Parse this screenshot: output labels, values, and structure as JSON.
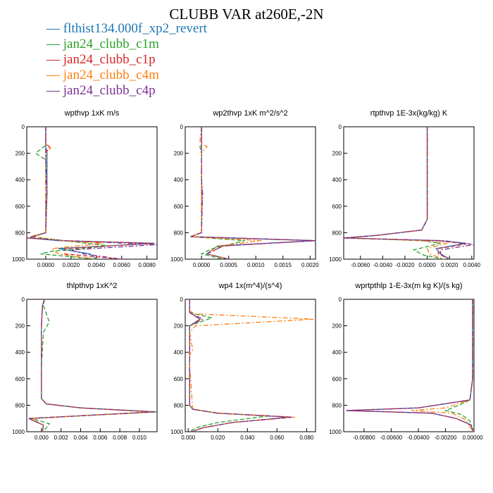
{
  "title": "CLUBB VAR at260E,-2N",
  "legend": [
    {
      "label": "flthist134.000f_xp2_revert",
      "color": "#1f77b4",
      "dash": "solid"
    },
    {
      "label": "jan24_clubb_c1m",
      "color": "#2ca02c",
      "dash": "dash"
    },
    {
      "label": "jan24_clubb_c1p",
      "color": "#d62728",
      "dash": "dash"
    },
    {
      "label": "jan24_clubb_c4m",
      "color": "#ff7f0e",
      "dash": "dashdot"
    },
    {
      "label": "jan24_clubb_c4p",
      "color": "#7b3294",
      "dash": "dashdot"
    }
  ],
  "chart_data": [
    {
      "type": "line",
      "title": "wpthvp   1xK m/s",
      "xlim": [
        -0.0015,
        0.0088
      ],
      "ylim": [
        0,
        1000
      ],
      "y_inverted": true,
      "xticks": [
        0.0,
        0.002,
        0.004,
        0.006,
        0.008
      ],
      "xticklabels": [
        "0.0000",
        "0.0020",
        "0.0040",
        "0.0060",
        "0.0080"
      ],
      "yticks": [
        0,
        200,
        400,
        600,
        800,
        1000
      ],
      "yticklabels": [
        "0",
        "200",
        "400",
        "600",
        "800",
        "1000"
      ],
      "series": [
        {
          "name": "flthist134.000f_xp2_revert",
          "x": [
            0,
            0,
            0,
            0.0001,
            0.0001,
            0,
            -0.0013,
            0.001,
            0.0086,
            0.001,
            0.0035,
            0.004
          ],
          "y": [
            0,
            100,
            150,
            200,
            500,
            800,
            840,
            860,
            880,
            920,
            960,
            1000
          ]
        },
        {
          "name": "jan24_clubb_c1m",
          "x": [
            0,
            0,
            -0.0008,
            0,
            0,
            0,
            -0.0012,
            0.0015,
            0.005,
            0.0005,
            -0.0004,
            0.004
          ],
          "y": [
            0,
            140,
            200,
            250,
            500,
            800,
            830,
            860,
            900,
            940,
            960,
            1000
          ]
        },
        {
          "name": "jan24_clubb_c1p",
          "x": [
            0,
            0,
            0.0003,
            0,
            0,
            0,
            -0.0015,
            0.0015,
            0.0085,
            0.0015,
            0.0015,
            0.006
          ],
          "y": [
            0,
            130,
            150,
            200,
            500,
            800,
            840,
            860,
            880,
            920,
            960,
            1000
          ]
        },
        {
          "name": "jan24_clubb_c4m",
          "x": [
            0,
            0,
            0.0004,
            0,
            0,
            0,
            -0.0012,
            0.0012,
            0.0045,
            0.0005,
            0.001,
            0.004
          ],
          "y": [
            0,
            130,
            160,
            200,
            500,
            800,
            830,
            860,
            880,
            920,
            960,
            1000
          ]
        },
        {
          "name": "jan24_clubb_c4p",
          "x": [
            0,
            0,
            0,
            0,
            0.0001,
            0,
            -0.0013,
            0.0015,
            0.0088,
            0.002,
            0.003,
            0.006
          ],
          "y": [
            0,
            150,
            200,
            250,
            500,
            800,
            840,
            860,
            890,
            930,
            960,
            1000
          ]
        }
      ]
    },
    {
      "type": "line",
      "title": "wp2thvp   1xK m^2/s^2",
      "xlim": [
        -0.0003,
        0.0021
      ],
      "ylim": [
        0,
        1000
      ],
      "y_inverted": true,
      "xticks": [
        0.0,
        0.0005,
        0.001,
        0.0015,
        0.002
      ],
      "xticklabels": [
        "0.0000",
        "0.0005",
        "0.0010",
        "0.0015",
        "0.0020"
      ],
      "yticks": [
        0,
        200,
        400,
        600,
        800,
        1000
      ],
      "yticklabels": [
        "0",
        "200",
        "400",
        "600",
        "800",
        "1000"
      ],
      "series": [
        {
          "name": "flthist134.000f_xp2_revert",
          "x": [
            0,
            0,
            0,
            1e-05,
            0,
            -0.0002,
            0.0021,
            0.0003,
            0.0001,
            0.0005
          ],
          "y": [
            0,
            150,
            400,
            500,
            800,
            830,
            860,
            900,
            960,
            1000
          ]
        },
        {
          "name": "jan24_clubb_c1m",
          "x": [
            0,
            0,
            -3e-05,
            0,
            0,
            -0.0002,
            0.0008,
            0.0002,
            0,
            0.0004
          ],
          "y": [
            0,
            130,
            150,
            200,
            800,
            830,
            860,
            920,
            960,
            1000
          ]
        },
        {
          "name": "jan24_clubb_c1p",
          "x": [
            0,
            0,
            0,
            0,
            -0.0002,
            0.0021,
            0.0004,
            0.0001,
            0.0005
          ],
          "y": [
            0,
            150,
            400,
            800,
            830,
            860,
            900,
            960,
            1000
          ]
        },
        {
          "name": "jan24_clubb_c4m",
          "x": [
            0,
            -3e-05,
            0.0001,
            0,
            0,
            0,
            -0.0002,
            0.0011,
            0.0003,
            0.0001,
            0.0005
          ],
          "y": [
            0,
            120,
            150,
            200,
            500,
            800,
            830,
            860,
            900,
            960,
            1000
          ]
        },
        {
          "name": "jan24_clubb_c4p",
          "x": [
            0,
            0,
            0,
            2e-05,
            0,
            -0.0002,
            0.0021,
            0.0004,
            0.0001,
            0.0005
          ],
          "y": [
            0,
            150,
            400,
            500,
            800,
            830,
            860,
            900,
            960,
            1000
          ]
        }
      ]
    },
    {
      "type": "line",
      "title": "rtpthvp   1E-3x(kg/kg) K",
      "xlim": [
        -0.0075,
        0.0042
      ],
      "ylim": [
        0,
        1000
      ],
      "y_inverted": true,
      "xticks": [
        -0.006,
        -0.004,
        -0.002,
        0.0,
        0.002,
        0.004
      ],
      "xticklabels": [
        "-0.0060",
        "-0.0040",
        "-0.0020",
        "0.0000",
        "0.0020",
        "0.0040"
      ],
      "yticks": [
        0,
        200,
        400,
        600,
        800,
        1000
      ],
      "yticklabels": [
        "0",
        "200",
        "400",
        "600",
        "800",
        "1000"
      ],
      "series": [
        {
          "name": "flthist134.000f_xp2_revert",
          "x": [
            0,
            0,
            -0.0005,
            -0.0045,
            -0.0075,
            0.001,
            0.0035,
            0.0008,
            0.0012,
            0.002
          ],
          "y": [
            0,
            700,
            780,
            820,
            840,
            860,
            880,
            920,
            960,
            1000
          ]
        },
        {
          "name": "jan24_clubb_c1m",
          "x": [
            0,
            0,
            -0.0005,
            -0.0045,
            -0.0072,
            -0.0005,
            0.0012,
            -0.0012,
            -0.0003,
            0.0015
          ],
          "y": [
            0,
            700,
            780,
            820,
            840,
            860,
            880,
            930,
            970,
            1000
          ]
        },
        {
          "name": "jan24_clubb_c1p",
          "x": [
            0,
            0,
            -0.0005,
            -0.0045,
            -0.0075,
            0.001,
            0.0035,
            0.001,
            0.001,
            0.002
          ],
          "y": [
            0,
            700,
            780,
            820,
            840,
            860,
            885,
            920,
            960,
            1000
          ]
        },
        {
          "name": "jan24_clubb_c4m",
          "x": [
            0,
            0,
            -0.0005,
            -0.0045,
            -0.007,
            -0.0005,
            0.0018,
            0.0,
            0.0002,
            0.0015
          ],
          "y": [
            0,
            700,
            780,
            820,
            840,
            860,
            880,
            920,
            960,
            1000
          ]
        },
        {
          "name": "jan24_clubb_c4p",
          "x": [
            0,
            0,
            -0.0005,
            -0.0045,
            -0.0075,
            0.0015,
            0.0042,
            0.0012,
            0.0012,
            0.002
          ],
          "y": [
            0,
            700,
            780,
            820,
            840,
            860,
            890,
            930,
            960,
            1000
          ]
        }
      ]
    },
    {
      "type": "line",
      "title": "thlpthvp   1xK^2",
      "xlim": [
        -0.0015,
        0.0118
      ],
      "ylim": [
        0,
        1000
      ],
      "y_inverted": true,
      "xticks": [
        0.0,
        0.002,
        0.004,
        0.006,
        0.008,
        0.01
      ],
      "xticklabels": [
        "0.000",
        "0.002",
        "0.004",
        "0.006",
        "0.008",
        "0.010"
      ],
      "yticks": [
        0,
        200,
        400,
        600,
        800,
        1000
      ],
      "yticklabels": [
        "0",
        "200",
        "400",
        "600",
        "800",
        "1000"
      ],
      "series": [
        {
          "name": "flthist134.000f_xp2_revert",
          "x": [
            0.0003,
            0.0001,
            0,
            0,
            0.0005,
            0.004,
            0.0115,
            -0.0013,
            0.0002,
            0.0001
          ],
          "y": [
            0,
            50,
            200,
            750,
            790,
            820,
            850,
            900,
            950,
            1000
          ]
        },
        {
          "name": "jan24_clubb_c1m",
          "x": [
            0.0003,
            0.0002,
            0.0008,
            0.0002,
            0,
            0,
            0.0005,
            0.004,
            0.0118,
            -0.001,
            0.0008,
            0.0002
          ],
          "y": [
            0,
            50,
            170,
            250,
            500,
            750,
            790,
            820,
            850,
            900,
            940,
            1000
          ]
        },
        {
          "name": "jan24_clubb_c1p",
          "x": [
            0.0003,
            0.0001,
            0,
            0,
            0.0005,
            0.004,
            0.0115,
            -0.0013,
            0.0002,
            0.0001
          ],
          "y": [
            0,
            50,
            200,
            750,
            790,
            820,
            850,
            900,
            950,
            1000
          ]
        },
        {
          "name": "jan24_clubb_c4m",
          "x": [
            0.0003,
            0.0001,
            0,
            0,
            0.0005,
            0.004,
            0.0112,
            -0.0011,
            0.0002,
            0.0001
          ],
          "y": [
            0,
            50,
            200,
            750,
            790,
            820,
            850,
            900,
            950,
            1000
          ]
        },
        {
          "name": "jan24_clubb_c4p",
          "x": [
            0.0003,
            0.0001,
            0,
            0,
            0.0005,
            0.004,
            0.0116,
            -0.0013,
            0.0002,
            0.0001
          ],
          "y": [
            0,
            50,
            200,
            750,
            790,
            820,
            850,
            900,
            950,
            1000
          ]
        }
      ]
    },
    {
      "type": "line",
      "title": "wp4   1x(m^4)/(s^4)",
      "xlim": [
        -0.002,
        0.086
      ],
      "ylim": [
        0,
        1000
      ],
      "y_inverted": true,
      "xticks": [
        0.0,
        0.02,
        0.04,
        0.06,
        0.08
      ],
      "xticklabels": [
        "0.000",
        "0.020",
        "0.040",
        "0.060",
        "0.080"
      ],
      "yticks": [
        0,
        200,
        400,
        600,
        800,
        1000
      ],
      "yticklabels": [
        "0",
        "200",
        "400",
        "600",
        "800",
        "1000"
      ],
      "series": [
        {
          "name": "flthist134.000f_xp2_revert",
          "x": [
            0.001,
            0.001,
            0.008,
            0.001,
            0.001,
            0.001,
            0.003,
            0.02,
            0.068,
            0.03,
            0.01,
            0.002
          ],
          "y": [
            0,
            100,
            150,
            200,
            500,
            800,
            830,
            860,
            890,
            930,
            970,
            1000
          ]
        },
        {
          "name": "jan24_clubb_c1m",
          "x": [
            0.001,
            0.001,
            0.016,
            0.001,
            0.001,
            0.001,
            0.003,
            0.02,
            0.055,
            0.02,
            0.005,
            0.001
          ],
          "y": [
            0,
            100,
            140,
            200,
            500,
            800,
            830,
            860,
            880,
            930,
            970,
            1000
          ]
        },
        {
          "name": "jan24_clubb_c1p",
          "x": [
            0.001,
            0.001,
            0.008,
            0.001,
            0.001,
            0.001,
            0.003,
            0.02,
            0.07,
            0.03,
            0.01,
            0.002
          ],
          "y": [
            0,
            100,
            150,
            200,
            500,
            800,
            830,
            860,
            890,
            930,
            970,
            1000
          ]
        },
        {
          "name": "jan24_clubb_c4m",
          "x": [
            0.001,
            0.001,
            0.005,
            0.085,
            0.005,
            0.001,
            0.003,
            0.001,
            0.001,
            0.003,
            0.02,
            0.072,
            0.03,
            0.01,
            0.002
          ],
          "y": [
            0,
            90,
            110,
            150,
            200,
            250,
            380,
            420,
            500,
            830,
            860,
            890,
            930,
            970,
            1000
          ]
        },
        {
          "name": "jan24_clubb_c4p",
          "x": [
            0.001,
            0.001,
            0.01,
            0.001,
            0.001,
            0.001,
            0.003,
            0.02,
            0.07,
            0.03,
            0.01,
            0.002
          ],
          "y": [
            0,
            100,
            150,
            200,
            500,
            800,
            830,
            860,
            890,
            930,
            970,
            1000
          ]
        }
      ]
    },
    {
      "type": "line",
      "title": "wprtpthlp   1-E-3x(m kg K)/(s kg)",
      "xlim": [
        -0.0095,
        0.0001
      ],
      "ylim": [
        0,
        1000
      ],
      "y_inverted": true,
      "xticks": [
        -0.008,
        -0.006,
        -0.004,
        -0.002,
        0.0
      ],
      "xticklabels": [
        "-0.00800",
        "-0.00600",
        "-0.00400",
        "-0.00200",
        "0.00000"
      ],
      "yticks": [
        0,
        200,
        400,
        600,
        800,
        1000
      ],
      "yticklabels": [
        "0",
        "200",
        "400",
        "600",
        "800",
        "1000"
      ],
      "series": [
        {
          "name": "flthist134.000f_xp2_revert",
          "x": [
            0,
            0,
            -0.0002,
            -0.004,
            -0.0093,
            -0.003,
            -0.0012,
            -0.0001,
            0
          ],
          "y": [
            0,
            600,
            760,
            820,
            840,
            860,
            900,
            950,
            1000
          ]
        },
        {
          "name": "jan24_clubb_c1m",
          "x": [
            0,
            0,
            -0.0002,
            -0.001,
            -0.002,
            -0.0008,
            -0.0002,
            0
          ],
          "y": [
            0,
            600,
            760,
            800,
            840,
            870,
            920,
            1000
          ]
        },
        {
          "name": "jan24_clubb_c1p",
          "x": [
            0,
            0,
            -0.0002,
            -0.004,
            -0.0093,
            -0.003,
            -0.0012,
            -0.0001,
            0
          ],
          "y": [
            0,
            600,
            760,
            820,
            840,
            860,
            900,
            950,
            1000
          ]
        },
        {
          "name": "jan24_clubb_c4m",
          "x": [
            0,
            0,
            -0.0002,
            -0.002,
            -0.0045,
            -0.0015,
            -0.0005,
            0
          ],
          "y": [
            0,
            600,
            760,
            820,
            840,
            860,
            910,
            1000
          ]
        },
        {
          "name": "jan24_clubb_c4p",
          "x": [
            0,
            0,
            -0.0002,
            -0.004,
            -0.0093,
            -0.003,
            -0.0012,
            -0.0001,
            0
          ],
          "y": [
            0,
            600,
            760,
            820,
            840,
            860,
            900,
            950,
            1000
          ]
        }
      ]
    }
  ]
}
